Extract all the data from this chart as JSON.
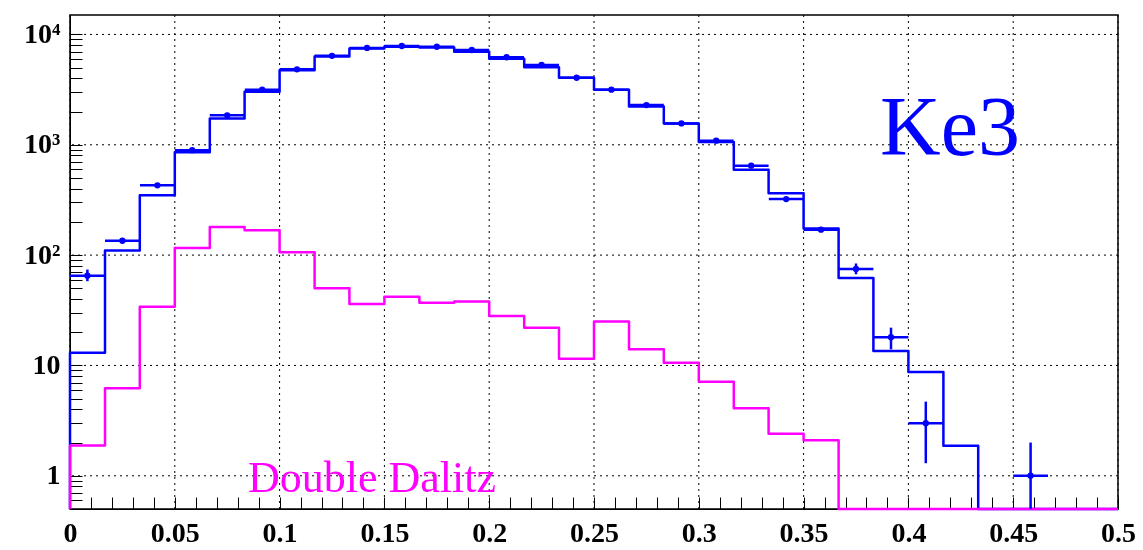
{
  "chart_data": {
    "type": "histogram",
    "bins": [
      0,
      0.0167,
      0.0333,
      0.05,
      0.0667,
      0.0833,
      0.1,
      0.1167,
      0.1333,
      0.15,
      0.1667,
      0.1833,
      0.2,
      0.2167,
      0.2333,
      0.25,
      0.2667,
      0.2833,
      0.3,
      0.3167,
      0.3333,
      0.35,
      0.3667,
      0.3833,
      0.4,
      0.4167,
      0.4333,
      0.45,
      0.4667,
      0.4833,
      0.5
    ],
    "series": [
      {
        "name": "Ke3",
        "color": "#0000ff",
        "values": [
          13,
          110,
          349,
          855,
          1730,
          3020,
          4730,
          6310,
          7450,
          7730,
          7620,
          6980,
          6010,
          5050,
          4050,
          3160,
          2220,
          1560,
          1060,
          593,
          363,
          174,
          62,
          13.5,
          8.7,
          1.87,
          null,
          null,
          null,
          null
        ]
      },
      {
        "name": "Double Dalitz",
        "color": "#ff00ff",
        "values": [
          1.88,
          6.2,
          34,
          116,
          180,
          168,
          106,
          50,
          36,
          42,
          37,
          38,
          28,
          22,
          11.5,
          25,
          14,
          10.6,
          7.1,
          4.1,
          2.4,
          2.1,
          null,
          null,
          null,
          null,
          null,
          null,
          null,
          null
        ]
      },
      {
        "type": "scatter",
        "color": "#0000ff",
        "x": [
          0.0083,
          0.025,
          0.0417,
          0.0583,
          0.075,
          0.0917,
          0.1083,
          0.125,
          0.1417,
          0.1583,
          0.175,
          0.1917,
          0.2083,
          0.225,
          0.2417,
          0.2583,
          0.275,
          0.2917,
          0.3083,
          0.325,
          0.3417,
          0.3583,
          0.375,
          0.3917,
          0.4083,
          0.4583
        ],
        "values": [
          65,
          135,
          429,
          893,
          1850,
          3160,
          4830,
          6400,
          7550,
          7850,
          7730,
          7230,
          6210,
          5280,
          4050,
          3160,
          2290,
          1560,
          1090,
          647,
          322,
          170,
          75,
          18,
          3,
          1
        ],
        "errors": [
          [
            58,
            74
          ],
          [
            128,
            142
          ],
          null,
          null,
          null,
          null,
          null,
          null,
          null,
          null,
          null,
          null,
          null,
          null,
          null,
          null,
          null,
          null,
          null,
          null,
          null,
          null,
          [
            67,
            84
          ],
          [
            14,
            22
          ],
          [
            1.3,
            4.7
          ],
          [
            0.5,
            2
          ]
        ],
        "xerrors": [
          0.0083,
          0.0083,
          0.0083,
          0.0083,
          0.0083,
          0.0083,
          0.0083,
          0.0083,
          0.0083,
          0.0083,
          0.0083,
          0.0083,
          0.0083,
          0.0083,
          0.0083,
          0.0083,
          0.0083,
          0.0083,
          0.0083,
          0.0083,
          0.0083,
          0.0083,
          0.0083,
          0.0083,
          0.0083,
          0.0083
        ]
      }
    ],
    "log": true,
    "grid": true,
    "marker": "circle",
    "line_style": "solid",
    "xlim": [
      0,
      0.5
    ],
    "ylim": [
      0.5,
      15000
    ],
    "xticks": [
      0,
      {
        "value": 0.01,
        "label": null
      },
      {
        "value": 0.02,
        "label": null
      },
      {
        "value": 0.03,
        "label": null
      },
      {
        "value": 0.04,
        "label": null
      },
      0.05,
      {
        "value": 0.06,
        "label": null
      },
      {
        "value": 0.07,
        "label": null
      },
      {
        "value": 0.08,
        "label": null
      },
      {
        "value": 0.09,
        "label": null
      },
      0.1,
      {
        "value": 0.11,
        "label": null
      },
      {
        "value": 0.12,
        "label": null
      },
      {
        "value": 0.13,
        "label": null
      },
      {
        "value": 0.14,
        "label": null
      },
      0.15,
      {
        "value": 0.16,
        "label": null
      },
      {
        "value": 0.17,
        "label": null
      },
      {
        "value": 0.18,
        "label": null
      },
      {
        "value": 0.19,
        "label": null
      },
      0.2,
      {
        "value": 0.21,
        "label": null
      },
      {
        "value": 0.22,
        "label": null
      },
      {
        "value": 0.23,
        "label": null
      },
      {
        "value": 0.24,
        "label": null
      },
      0.25,
      {
        "value": 0.26,
        "label": null
      },
      {
        "value": 0.27,
        "label": null
      },
      {
        "value": 0.28,
        "label": null
      },
      {
        "value": 0.29,
        "label": null
      },
      0.3,
      {
        "value": 0.31,
        "label": null
      },
      {
        "value": 0.32,
        "label": null
      },
      {
        "value": 0.33,
        "label": null
      },
      {
        "value": 0.34,
        "label": null
      },
      0.35,
      {
        "value": 0.36,
        "label": null
      },
      {
        "value": 0.37,
        "label": null
      },
      {
        "value": 0.38,
        "label": null
      },
      {
        "value": 0.39,
        "label": null
      },
      0.4,
      {
        "value": 0.41,
        "label": null
      },
      {
        "value": 0.42,
        "label": null
      },
      {
        "value": 0.43,
        "label": null
      },
      {
        "value": 0.44,
        "label": null
      },
      0.45,
      {
        "value": 0.46,
        "label": null
      },
      {
        "value": 0.47,
        "label": null
      },
      {
        "value": 0.48,
        "label": null
      },
      {
        "value": 0.49,
        "label": null
      },
      0.5
    ],
    "yticks": [
      {
        "value": 0.6,
        "label": null
      },
      {
        "value": 0.7,
        "label": null
      },
      {
        "value": 0.8,
        "label": null
      },
      {
        "value": 0.9,
        "label": null
      },
      1,
      {
        "value": 2,
        "label": null
      },
      {
        "value": 3,
        "label": null
      },
      {
        "value": 4,
        "label": null
      },
      {
        "value": 5,
        "label": null
      },
      {
        "value": 6,
        "label": null
      },
      {
        "value": 7,
        "label": null
      },
      {
        "value": 8,
        "label": null
      },
      {
        "value": 9,
        "label": null
      },
      10,
      {
        "value": 20,
        "label": null
      },
      {
        "value": 30,
        "label": null
      },
      {
        "value": 40,
        "label": null
      },
      {
        "value": 50,
        "label": null
      },
      {
        "value": 60,
        "label": null
      },
      {
        "value": 70,
        "label": null
      },
      {
        "value": 80,
        "label": null
      },
      {
        "value": 90,
        "label": null
      },
      {
        "value": 100,
        "label": "10²"
      },
      {
        "value": 200,
        "label": null
      },
      {
        "value": 300,
        "label": null
      },
      {
        "value": 400,
        "label": null
      },
      {
        "value": 500,
        "label": null
      },
      {
        "value": 600,
        "label": null
      },
      {
        "value": 700,
        "label": null
      },
      {
        "value": 800,
        "label": null
      },
      {
        "value": 900,
        "label": null
      },
      {
        "value": 1000,
        "label": "10³"
      },
      {
        "value": 2000,
        "label": null
      },
      {
        "value": 3000,
        "label": null
      },
      {
        "value": 4000,
        "label": null
      },
      {
        "value": 5000,
        "label": null
      },
      {
        "value": 6000,
        "label": null
      },
      {
        "value": 7000,
        "label": null
      },
      {
        "value": 8000,
        "label": null
      },
      {
        "value": 9000,
        "label": null
      },
      {
        "value": 10000,
        "label": "10⁴"
      }
    ]
  }
}
